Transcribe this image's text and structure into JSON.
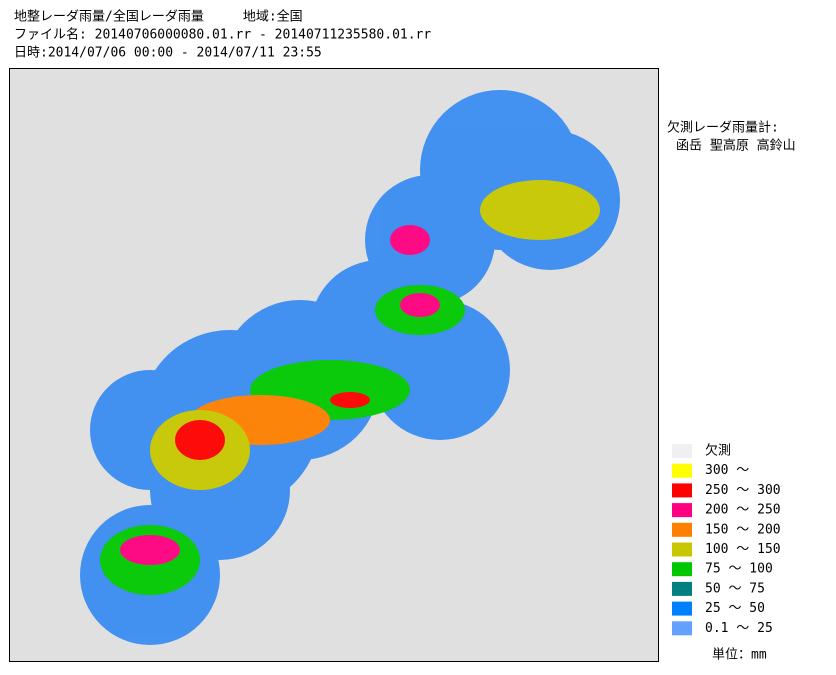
{
  "header": {
    "lines": [
      "地整レーダ雨量/全国レーダ雨量　　　地域:全国",
      "ファイル名: 20140706000080.01.rr - 20140711235580.01.rr",
      "日時:2014/07/06 00:00 - 2014/07/11 23:55"
    ]
  },
  "missing_gauges": {
    "title": "欠測レーダ雨量計:",
    "stations": "函岳 聖高原 高鈴山"
  },
  "legend": {
    "items": [
      {
        "label": "欠測",
        "color": "#f0f0f0"
      },
      {
        "label": "300 ～",
        "color": "#ffff00"
      },
      {
        "label": "250 ～ 300",
        "color": "#ff0000"
      },
      {
        "label": "200 ～ 250",
        "color": "#ff0080"
      },
      {
        "label": "150 ～ 200",
        "color": "#ff8000"
      },
      {
        "label": "100 ～ 150",
        "color": "#c8c800"
      },
      {
        "label": "75 ～ 100",
        "color": "#00c800"
      },
      {
        "label": "50 ～  75",
        "color": "#008080"
      },
      {
        "label": "25 ～  50",
        "color": "#0080ff"
      },
      {
        "label": "0.1 ～  25",
        "color": "#64a0ff"
      }
    ],
    "unit": "単位：mm"
  }
}
